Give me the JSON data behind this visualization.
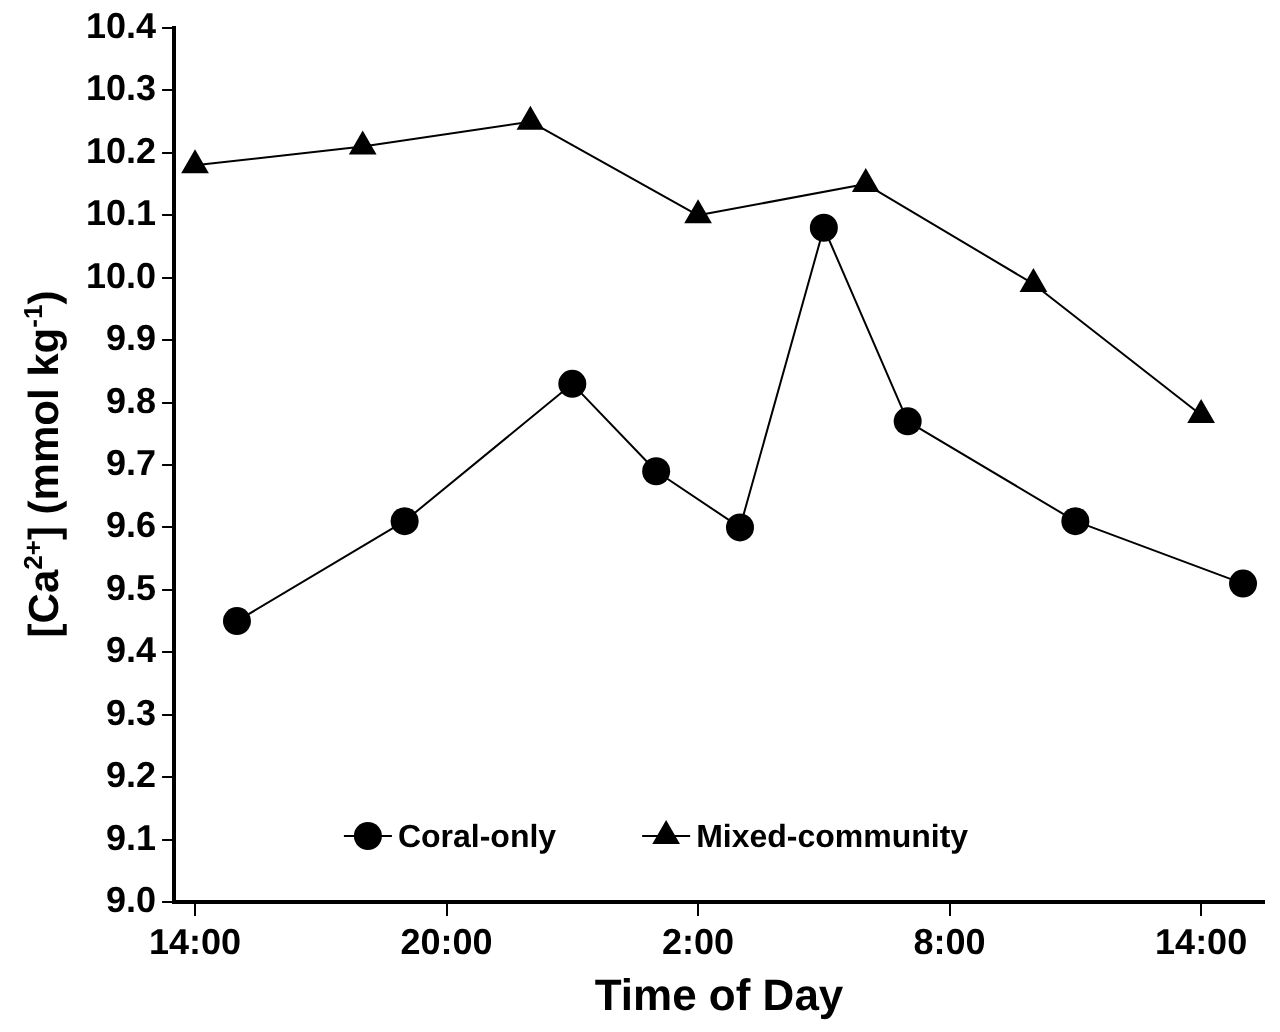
{
  "chart_data": {
    "type": "line",
    "xlabel": "Time of Day",
    "ylabel": "[Ca$^{2+}$] (mmol kg$^{-1}$)",
    "xlim": [
      "2000-01-01T13:30",
      "2000-01-02T15:30"
    ],
    "xticks": [
      {
        "value": "2000-01-01T14:00",
        "label": "14:00"
      },
      {
        "value": "2000-01-01T20:00",
        "label": "20:00"
      },
      {
        "value": "2000-01-02T02:00",
        "label": "2:00"
      },
      {
        "value": "2000-01-02T08:00",
        "label": "8:00"
      },
      {
        "value": "2000-01-02T14:00",
        "label": "14:00"
      }
    ],
    "ylim": [
      9.0,
      10.4
    ],
    "yticks": [
      {
        "value": 9.0,
        "label": "9.0"
      },
      9.1,
      9.2,
      9.3,
      9.4,
      9.5,
      9.6,
      9.7,
      9.8,
      9.9,
      {
        "value": 10.0,
        "label": "10.0"
      },
      10.1,
      10.2,
      10.3,
      10.4
    ],
    "series": [
      {
        "name": "Coral-only",
        "color": "#000000",
        "marker": "circle",
        "x": [
          "2000-01-01T15:00",
          "2000-01-01T19:00",
          "2000-01-01T23:00",
          "2000-01-02T01:00",
          "2000-01-02T03:00",
          "2000-01-02T05:00",
          "2000-01-02T07:00",
          "2000-01-02T11:00",
          "2000-01-02T15:00"
        ],
        "values": [
          9.45,
          9.61,
          9.83,
          9.69,
          9.6,
          10.08,
          9.77,
          9.61,
          9.51
        ]
      },
      {
        "name": "Mixed-community",
        "color": "#000000",
        "marker": "triangle",
        "x": [
          "2000-01-01T14:00",
          "2000-01-01T18:00",
          "2000-01-01T22:00",
          "2000-01-02T02:00",
          "2000-01-02T06:00",
          "2000-01-02T10:00",
          "2000-01-02T14:00"
        ],
        "values": [
          10.18,
          10.21,
          10.25,
          10.1,
          10.15,
          9.99,
          9.78
        ]
      }
    ],
    "grid": false,
    "legend": "bottom",
    "line_style": "solid"
  }
}
